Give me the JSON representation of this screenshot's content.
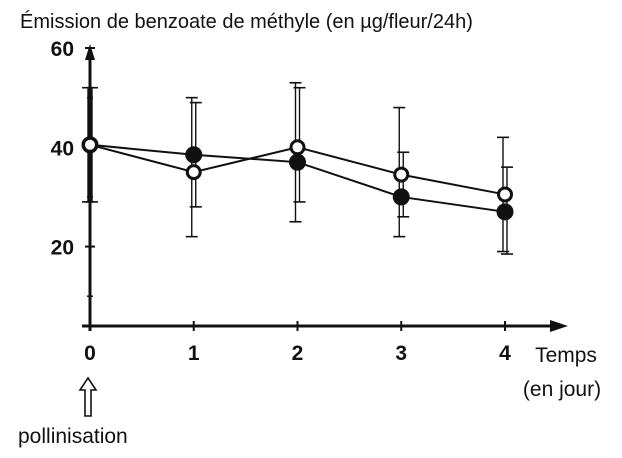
{
  "chart_data": {
    "type": "line",
    "title": "Émission de benzoate de méthyle  (en µg/fleur/24h)",
    "xlabel": [
      "Temps",
      "(en jour)"
    ],
    "ylabel": "",
    "x": [
      0,
      1,
      2,
      3,
      4
    ],
    "x_ticks": [
      "0",
      "1",
      "2",
      "3",
      "4"
    ],
    "y_ticks": [
      {
        "value": 20,
        "label": "20"
      },
      {
        "value": 40,
        "label": "40"
      },
      {
        "value": 60,
        "label": "60"
      }
    ],
    "xlim": [
      0,
      4.8
    ],
    "ylim": [
      4,
      60
    ],
    "grid": false,
    "series": [
      {
        "marker": "filled-circle",
        "color": "#111111",
        "values": [
          40.5,
          38.5,
          37,
          30,
          27
        ],
        "error_low": [
          29,
          22,
          25,
          22,
          19
        ],
        "error_high": [
          52,
          50,
          53,
          48,
          42
        ]
      },
      {
        "marker": "open-circle",
        "color": "#111111",
        "values": [
          40.5,
          35,
          40,
          34.5,
          30.5
        ],
        "error_low": [
          29,
          28,
          29,
          26,
          18.5
        ],
        "error_high": [
          52,
          49,
          52,
          39,
          36
        ]
      }
    ],
    "annotations": [
      {
        "text": "pollinisation",
        "at_x": 0,
        "icon": "up-arrow-outline-icon"
      }
    ]
  }
}
